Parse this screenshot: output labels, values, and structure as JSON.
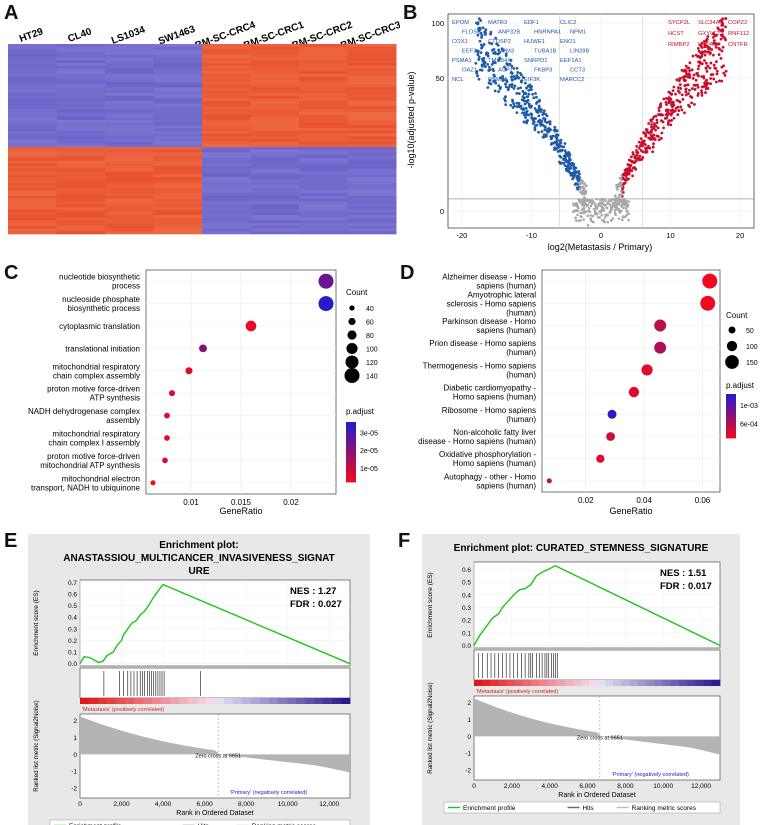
{
  "colors": {
    "heat_hi": "#e8502e",
    "heat_lo": "#6a63c9",
    "volcano_up": "#c8102e",
    "volcano_down": "#1f5ba8",
    "volcano_ns": "#a8a8a8",
    "es_line": "#22c21e",
    "padj_low": "#ee0a20",
    "padj_high": "#2a1ac8"
  },
  "panels": {
    "a": {
      "letter": "A",
      "samples": [
        "HT29",
        "CL40",
        "LS1034",
        "SW1463",
        "BM-SC-CRC4",
        "BM-SC-CRC1",
        "BM-SC-CRC2",
        "BM-SC-CRC3"
      ]
    },
    "b": {
      "letter": "B",
      "ylabel": "-log10(adjusted p-value)",
      "xlabel": "log2(Metastasis / Primary)",
      "down_genes": [
        "EPOM",
        "MATR3",
        "EDF1",
        "CLIC2",
        "FLOSE",
        "ANP32B",
        "HNRNPA1",
        "NPM1",
        "COX1",
        "CTDSP2",
        "HUWE1",
        "ENO1",
        "EEF2",
        "NPM3",
        "TUBA1B",
        "LIN28B",
        "PSMA1",
        "TMSB4X",
        "SNRPD1",
        "EEF1A1",
        "OAZ1",
        "AUP1",
        "FKBP3",
        "CCT3",
        "NCL",
        "RBM8A",
        "EIF3K",
        "MARCC2"
      ],
      "up_genes": [
        "SYCP2L",
        "SLC34A1",
        "COPZ2",
        "HCST",
        "GXYLT2",
        "RNF112",
        "RIMBP2",
        "HSPA6",
        "CNTFR"
      ],
      "chart_data": {
        "type": "scatter",
        "title": "",
        "xlabel": "log2(Metastasis / Primary)",
        "ylabel": "-log10(adjusted p-value)",
        "x_ticks": [
          -20,
          -10,
          0,
          10,
          20
        ],
        "y_ticks": [
          0,
          50,
          100
        ],
        "xlim": [
          -22,
          22
        ],
        "ylim": [
          0,
          110
        ],
        "pvalue_threshold_line": 1.3,
        "series": [
          {
            "name": "down",
            "color": "#1f5ba8"
          },
          {
            "name": "not significant",
            "color": "#a8a8a8"
          },
          {
            "name": "up",
            "color": "#c8102e"
          }
        ]
      }
    },
    "c": {
      "letter": "C",
      "xlabel": "GeneRatio",
      "count_title": "Count",
      "padj_title": "p.adjust",
      "chart_data": {
        "type": "scatter",
        "xlabel": "GeneRatio",
        "x_ticks": [
          0.01,
          0.015,
          0.02
        ],
        "xlim": [
          0.0055,
          0.0245
        ],
        "terms": [
          {
            "label": [
              "nucleotide biosynthetic",
              "process"
            ],
            "ratio": 0.0235,
            "count": 140,
            "padj": 2.2e-05
          },
          {
            "label": [
              "nucleoside phosphate",
              "biosynthetic process"
            ],
            "ratio": 0.0235,
            "count": 140,
            "padj": 3.2e-05
          },
          {
            "label": [
              "cytoplasmic translation"
            ],
            "ratio": 0.016,
            "count": 95,
            "padj": 2e-06
          },
          {
            "label": [
              "translational initiation"
            ],
            "ratio": 0.0112,
            "count": 66,
            "padj": 1.8e-05
          },
          {
            "label": [
              "mitochondrial respiratory",
              "chain complex assembly"
            ],
            "ratio": 0.0098,
            "count": 58,
            "padj": 5e-06
          },
          {
            "label": [
              "proton motive force-driven",
              "ATP synthesis"
            ],
            "ratio": 0.0081,
            "count": 48,
            "padj": 5e-06
          },
          {
            "label": [
              "NADH dehydrogenase complex",
              "assembly"
            ],
            "ratio": 0.0076,
            "count": 45,
            "padj": 3e-06
          },
          {
            "label": [
              "mitochondrial respiratory",
              "chain complex I assembly"
            ],
            "ratio": 0.0076,
            "count": 45,
            "padj": 3e-06
          },
          {
            "label": [
              "proton motive force-driven",
              "mitochondrial ATP synthesis"
            ],
            "ratio": 0.0074,
            "count": 44,
            "padj": 5e-06
          },
          {
            "label": [
              "mitochondrial electron",
              "transport, NADH to ubiquinone"
            ],
            "ratio": 0.0062,
            "count": 37,
            "padj": 1e-06
          }
        ],
        "count_legend": [
          40,
          60,
          80,
          100,
          120,
          140
        ],
        "padj_legend_labels": [
          "3e-05",
          "2e-05",
          "1e-05"
        ]
      }
    },
    "d": {
      "letter": "D",
      "xlabel": "GeneRatio",
      "count_title": "Count",
      "padj_title": "p.adjust",
      "chart_data": {
        "type": "scatter",
        "xlabel": "GeneRatio",
        "x_ticks": [
          0.02,
          0.04,
          0.06
        ],
        "xlim": [
          0.005,
          0.066
        ],
        "terms": [
          {
            "label": [
              "Alzheimer disease - Homo",
              "sapiens (human)"
            ],
            "ratio": 0.0625,
            "count": 170,
            "padj": 1e-05
          },
          {
            "label": [
              "Amyotrophic lateral",
              "sclerosis - Homo sapiens",
              "(human)"
            ],
            "ratio": 0.0618,
            "count": 168,
            "padj": 1e-05
          },
          {
            "label": [
              "Parkinson disease - Homo",
              "sapiens (human)"
            ],
            "ratio": 0.0455,
            "count": 124,
            "padj": 0.0003
          },
          {
            "label": [
              "Prion disease - Homo sapiens",
              "(human)"
            ],
            "ratio": 0.0455,
            "count": 124,
            "padj": 0.0004
          },
          {
            "label": [
              "Thermogenesis - Homo sapiens",
              "(human)"
            ],
            "ratio": 0.041,
            "count": 112,
            "padj": 0.0001
          },
          {
            "label": [
              "Diabetic cardiomyopathy -",
              "Homo sapiens (human)"
            ],
            "ratio": 0.0365,
            "count": 100,
            "padj": 0.0001
          },
          {
            "label": [
              "Ribosome - Homo sapiens",
              "(human)"
            ],
            "ratio": 0.029,
            "count": 80,
            "padj": 0.00115
          },
          {
            "label": [
              "Non-alcoholic fatty liver",
              "disease - Homo sapiens (human)"
            ],
            "ratio": 0.0285,
            "count": 78,
            "padj": 0.0002
          },
          {
            "label": [
              "Oxidative phosphorylation -",
              "Homo sapiens (human)"
            ],
            "ratio": 0.025,
            "count": 68,
            "padj": 0.0001
          },
          {
            "label": [
              "Autophagy - other - Homo",
              "sapiens (human)"
            ],
            "ratio": 0.0075,
            "count": 20,
            "padj": 0.0003
          }
        ],
        "count_legend": [
          50,
          100,
          150
        ],
        "padj_legend_labels": [
          "1e-03",
          "6e-04"
        ]
      }
    },
    "e": {
      "letter": "E",
      "title_line1": "Enrichment plot:",
      "title_line2": "ANASTASSIOU_MULTICANCER_INVASIVENESS_SIGNAT",
      "title_line3": "URE",
      "nes": "NES : 1.27",
      "fdr": "FDR : 0.027",
      "es_ylabel": "Enrichment score (ES)",
      "rank_ylabel": "Ranked list metric (Signal2Noise)",
      "pos_label": "'Metastasis' (positively correlated)",
      "neg_label": "'Primary' (negatively correlated)",
      "zero_cross": "Zero cross at 6651",
      "xlabel": "Rank in Ordered Dataset",
      "legend": [
        "Enrichment profile",
        "Hits",
        "Ranking metric scores"
      ],
      "chart_data": {
        "type": "line",
        "x_ticks": [
          0,
          2000,
          4000,
          6000,
          8000,
          10000,
          12000
        ],
        "x_tick_labels": [
          "0",
          "2,000",
          "4,000",
          "6,000",
          "8,000",
          "10,000",
          "12,000"
        ],
        "xlim": [
          0,
          13000
        ],
        "es_ticks": [
          0.0,
          0.1,
          0.2,
          0.3,
          0.4,
          0.5,
          0.6,
          0.7
        ],
        "es_ylim": [
          -0.02,
          0.72
        ],
        "rank_ticks": [
          -2,
          -1,
          0,
          1,
          2
        ],
        "rank_ylim": [
          -2.6,
          2.4
        ],
        "zero_cross_rank": 6651,
        "es_points": [
          [
            0,
            0.0
          ],
          [
            200,
            0.06
          ],
          [
            500,
            0.05
          ],
          [
            900,
            0.01
          ],
          [
            1100,
            0.02
          ],
          [
            1300,
            0.07
          ],
          [
            1600,
            0.1
          ],
          [
            1800,
            0.16
          ],
          [
            2000,
            0.2
          ],
          [
            2100,
            0.25
          ],
          [
            2300,
            0.3
          ],
          [
            2500,
            0.35
          ],
          [
            2700,
            0.37
          ],
          [
            2900,
            0.42
          ],
          [
            3100,
            0.45
          ],
          [
            3300,
            0.5
          ],
          [
            3500,
            0.56
          ],
          [
            3700,
            0.61
          ],
          [
            3900,
            0.66
          ],
          [
            4000,
            0.68
          ],
          [
            13000,
            0.0
          ]
        ],
        "hits": [
          1150,
          1900,
          2100,
          2300,
          2450,
          2600,
          2750,
          2900,
          3000,
          3100,
          3250,
          3350,
          3450,
          3550,
          3650,
          3750,
          3850,
          3950,
          4050,
          5800
        ]
      }
    },
    "f": {
      "letter": "F",
      "title": "Enrichment plot: CURATED_STEMNESS_SIGNATURE",
      "nes": "NES : 1.51",
      "fdr": "FDR : 0.017",
      "es_ylabel": "Enrichment score (ES)",
      "rank_ylabel": "Ranked list metric (Signal2Noise)",
      "pos_label": "'Metastasis' (positively correlated)",
      "neg_label": "'Primary' (negatively correlated)",
      "zero_cross": "Zero cross at 6651",
      "xlabel": "Rank in Ordered Dataset",
      "legend": [
        "Enrichment profile",
        "Hits",
        "Ranking metric scores"
      ],
      "chart_data": {
        "type": "line",
        "x_ticks": [
          0,
          2000,
          4000,
          6000,
          8000,
          10000,
          12000
        ],
        "x_tick_labels": [
          "0",
          "2,000",
          "4,000",
          "6,000",
          "8,000",
          "10,000",
          "12,000"
        ],
        "xlim": [
          0,
          13000
        ],
        "es_ticks": [
          0.0,
          0.1,
          0.2,
          0.3,
          0.4,
          0.5,
          0.6
        ],
        "es_ylim": [
          -0.02,
          0.66
        ],
        "rank_ticks": [
          -2,
          -1,
          0,
          1,
          2
        ],
        "rank_ylim": [
          -2.6,
          2.4
        ],
        "zero_cross_rank": 6651,
        "es_points": [
          [
            0,
            0.0
          ],
          [
            300,
            0.08
          ],
          [
            500,
            0.12
          ],
          [
            800,
            0.18
          ],
          [
            1000,
            0.22
          ],
          [
            1300,
            0.25
          ],
          [
            1500,
            0.3
          ],
          [
            1800,
            0.35
          ],
          [
            2100,
            0.4
          ],
          [
            2400,
            0.44
          ],
          [
            2700,
            0.45
          ],
          [
            3000,
            0.48
          ],
          [
            3300,
            0.55
          ],
          [
            3600,
            0.58
          ],
          [
            3900,
            0.6
          ],
          [
            4300,
            0.63
          ],
          [
            13000,
            0.0
          ]
        ],
        "hits": [
          250,
          450,
          700,
          900,
          1100,
          1300,
          1500,
          1700,
          1900,
          2100,
          2300,
          2500,
          2700,
          2900,
          3000,
          3100,
          3300,
          3450,
          3600,
          3750,
          3850,
          3950,
          4100,
          4200,
          4300,
          4400
        ]
      }
    }
  }
}
